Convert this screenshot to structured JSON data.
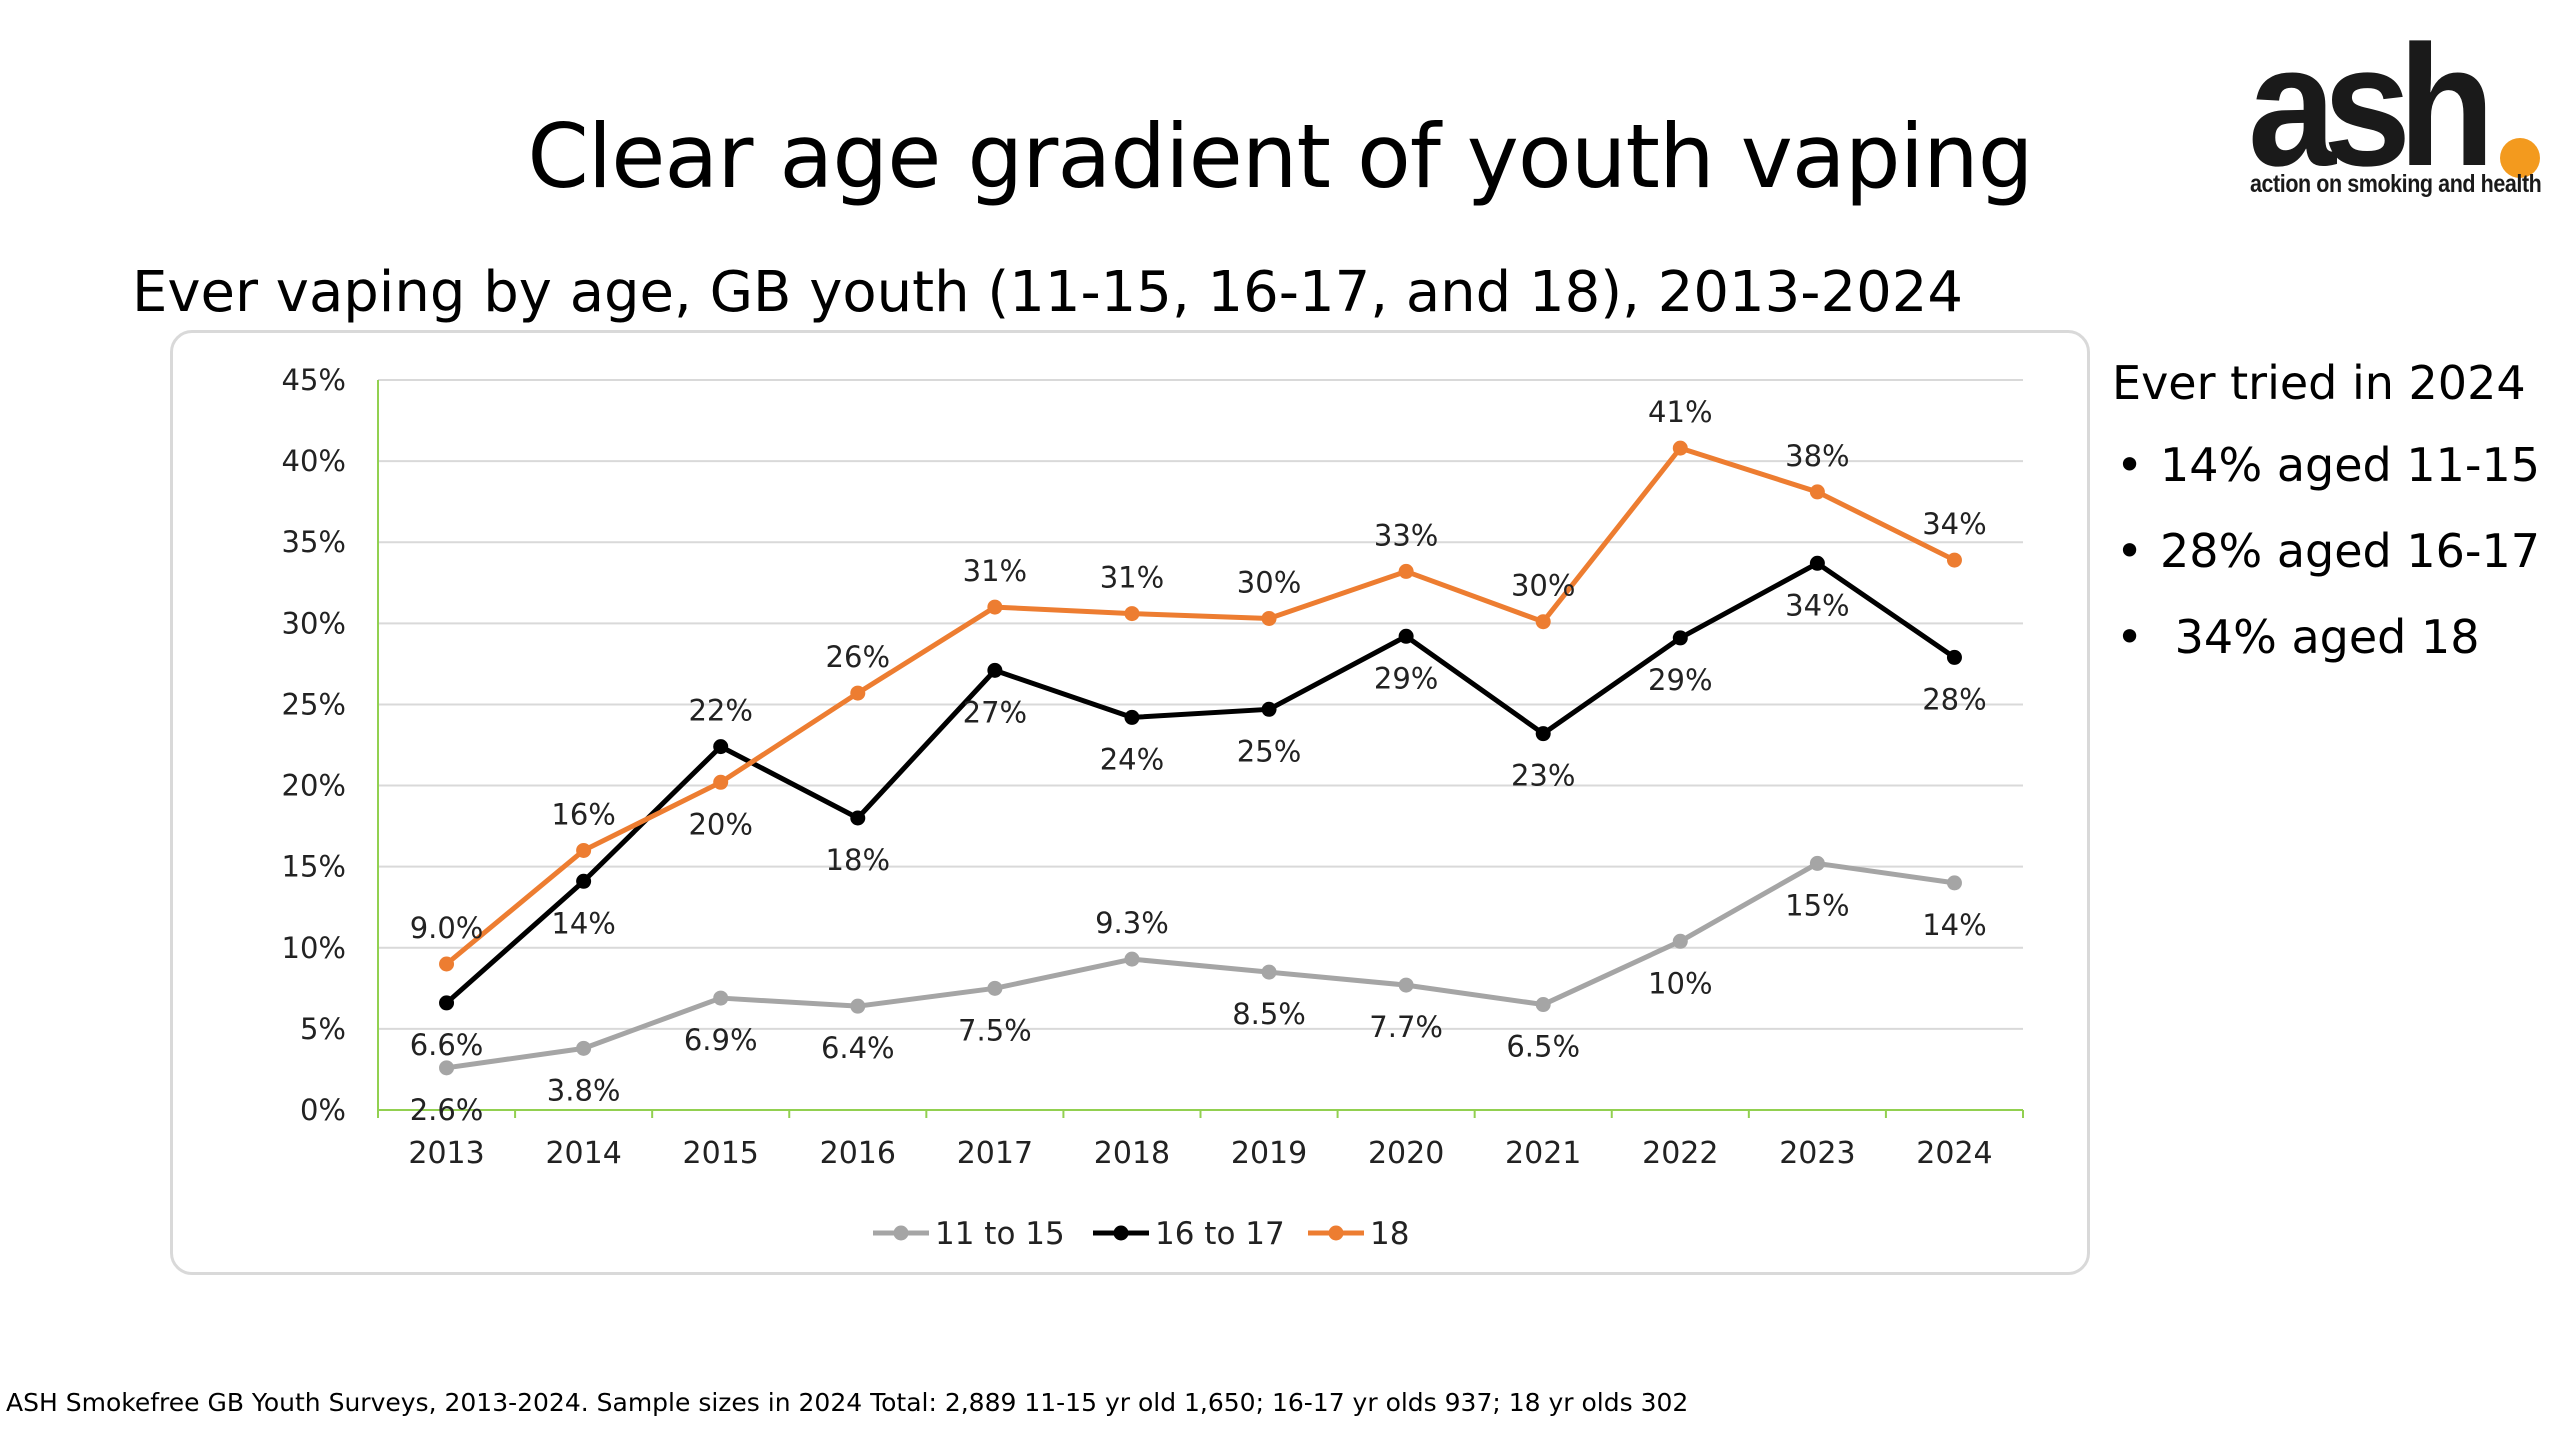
{
  "title": "Clear age gradient of youth vaping",
  "subtitle": "Ever vaping by age, GB youth (11-15, 16-17, and 18), 2013-2024",
  "logo": {
    "word": "ash",
    "tagline": "action on smoking and health",
    "dot_color": "#f39a1e"
  },
  "side_panel": {
    "heading": "Ever tried in 2024",
    "items": [
      "14% aged 11-15",
      "28% aged 16-17",
      " 34% aged 18"
    ]
  },
  "footnote": "ASH Smokefree GB Youth Surveys, 2013-2024. Sample sizes in 2024 Total: 2,889 11-15 yr old 1,650; 16-17 yr olds 937; 18 yr olds 302",
  "chart_data": {
    "type": "line",
    "title": "",
    "xlabel": "",
    "ylabel": "",
    "x": [
      "2013",
      "2014",
      "2015",
      "2016",
      "2017",
      "2018",
      "2019",
      "2020",
      "2021",
      "2022",
      "2023",
      "2024"
    ],
    "ylim": [
      0,
      45
    ],
    "yticks": [
      0,
      5,
      10,
      15,
      20,
      25,
      30,
      35,
      40,
      45
    ],
    "ytick_labels": [
      "0%",
      "5%",
      "10%",
      "15%",
      "20%",
      "25%",
      "30%",
      "35%",
      "40%",
      "45%"
    ],
    "grid": true,
    "legend_position": "bottom",
    "series": [
      {
        "name": "11 to 15",
        "color": "#a5a5a5",
        "values": [
          2.6,
          3.8,
          6.9,
          6.4,
          7.5,
          9.3,
          8.5,
          7.7,
          6.5,
          10.4,
          15.2,
          14.0
        ],
        "labels": [
          "2.6%",
          "3.8%",
          "6.9%",
          "6.4%",
          "7.5%",
          "9.3%",
          "8.5%",
          "7.7%",
          "6.5%",
          "10%",
          "15%",
          "14%"
        ],
        "label_pos": [
          "below",
          "below",
          "below",
          "below",
          "below",
          "above",
          "below",
          "below",
          "below",
          "below",
          "below",
          "below"
        ]
      },
      {
        "name": "16 to 17",
        "color": "#000000",
        "values": [
          6.6,
          14.1,
          22.4,
          18.0,
          27.1,
          24.2,
          24.7,
          29.2,
          23.2,
          29.1,
          33.7,
          27.9
        ],
        "labels": [
          "6.6%",
          "14%",
          "22%",
          "18%",
          "27%",
          "24%",
          "25%",
          "29%",
          "23%",
          "29%",
          "34%",
          "28%"
        ],
        "label_pos": [
          "below",
          "below",
          "above",
          "below",
          "below",
          "below",
          "below",
          "below",
          "below",
          "below",
          "below",
          "below"
        ]
      },
      {
        "name": "18",
        "color": "#ed7d31",
        "values": [
          9.0,
          16.0,
          20.2,
          25.7,
          31.0,
          30.6,
          30.3,
          33.2,
          30.1,
          40.8,
          38.1,
          33.9
        ],
        "labels": [
          "9.0%",
          "16%",
          "20%",
          "26%",
          "31%",
          "31%",
          "30%",
          "33%",
          "30%",
          "41%",
          "38%",
          "34%"
        ],
        "label_pos": [
          "above",
          "above",
          "below",
          "above",
          "above",
          "above",
          "above",
          "above",
          "above",
          "above",
          "above",
          "above"
        ]
      }
    ]
  }
}
